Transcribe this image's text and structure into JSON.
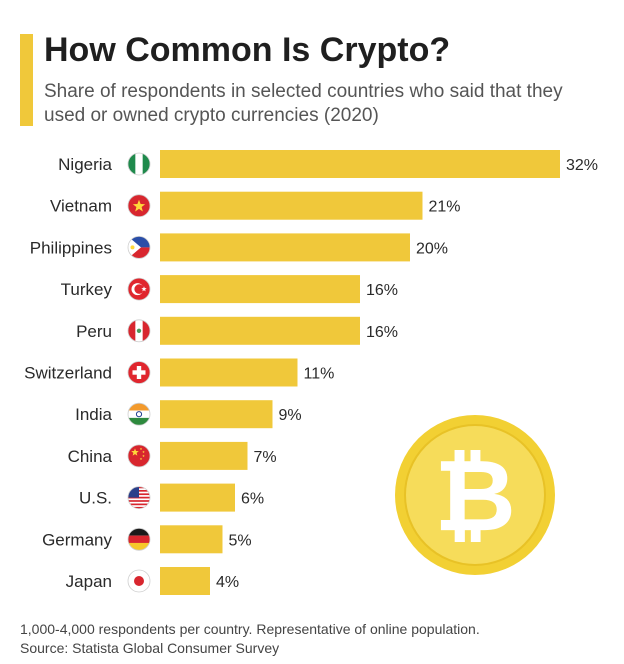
{
  "header": {
    "title": "How Common Is Crypto?",
    "subtitle": "Share of respondents in selected countries who said that they used or owned crypto currencies (2020)"
  },
  "footer": {
    "note": "1,000-4,000 respondents per country. Representative of online population.",
    "source": "Source: Statista Global Consumer Survey"
  },
  "colors": {
    "bar": "#f0c83a",
    "accent": "#f0c83a",
    "coin_outer": "#f2d033",
    "coin_inner": "#f6dc5a"
  },
  "decoration": {
    "coin_symbol": "₿",
    "coin_icon": "bitcoin-coin-icon"
  },
  "chart_data": {
    "type": "bar",
    "orientation": "horizontal",
    "categories": [
      "Nigeria",
      "Vietnam",
      "Philippines",
      "Turkey",
      "Peru",
      "Switzerland",
      "India",
      "China",
      "U.S.",
      "Germany",
      "Japan"
    ],
    "values": [
      32,
      21,
      20,
      16,
      16,
      11,
      9,
      7,
      6,
      5,
      4
    ],
    "value_labels": [
      "32%",
      "21%",
      "20%",
      "16%",
      "16%",
      "11%",
      "9%",
      "7%",
      "6%",
      "5%",
      "4%"
    ],
    "flags": [
      "nigeria-flag-icon",
      "vietnam-flag-icon",
      "philippines-flag-icon",
      "turkey-flag-icon",
      "peru-flag-icon",
      "switzerland-flag-icon",
      "india-flag-icon",
      "china-flag-icon",
      "us-flag-icon",
      "germany-flag-icon",
      "japan-flag-icon"
    ],
    "xlim": [
      0,
      32
    ],
    "grid": false,
    "title": "How Common Is Crypto?",
    "xlabel": "",
    "ylabel": ""
  }
}
